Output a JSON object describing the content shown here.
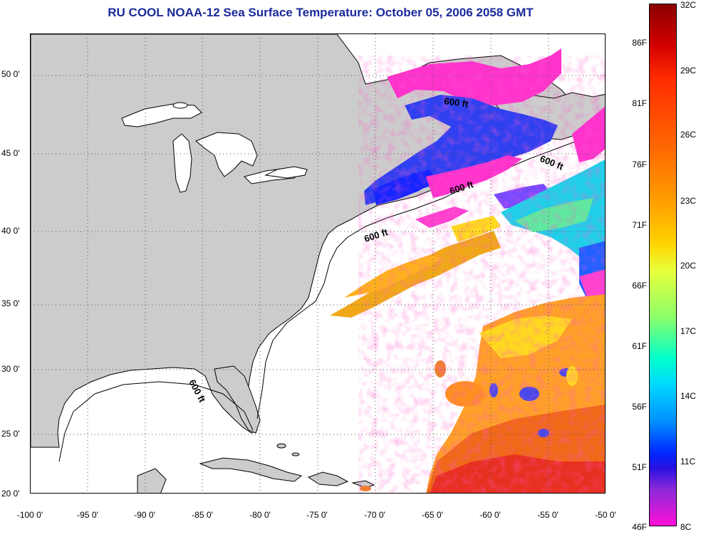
{
  "title": "RU COOL  NOAA-12  Sea Surface Temperature:  October 05, 2006 2058 GMT",
  "map": {
    "latitude_labels": [
      "50 0'",
      "45 0'",
      "40 0'",
      "35 0'",
      "30 0'",
      "25 0'",
      "20 0'"
    ],
    "longitude_labels": [
      "-100 0'",
      "-95 0'",
      "-90 0'",
      "-85 0'",
      "-80 0'",
      "-75 0'",
      "-70 0'",
      "-65 0'",
      "-60 0'",
      "-55 0'",
      "-50 0'"
    ],
    "contour_labels": [
      "600 ft",
      "600 ft",
      "600 ft",
      "600 ft",
      "600 ft"
    ],
    "colors": {
      "land": "#cccccc",
      "ocean_no_data": "#ffffff",
      "title": "#1a2a9a"
    }
  },
  "colorbar": {
    "fahrenheit_labels": [
      "86F",
      "81F",
      "76F",
      "71F",
      "66F",
      "61F",
      "56F",
      "51F",
      "46F"
    ],
    "celsius_labels": [
      "32C",
      "29C",
      "26C",
      "23C",
      "20C",
      "17C",
      "14C",
      "11C",
      "8C"
    ]
  }
}
